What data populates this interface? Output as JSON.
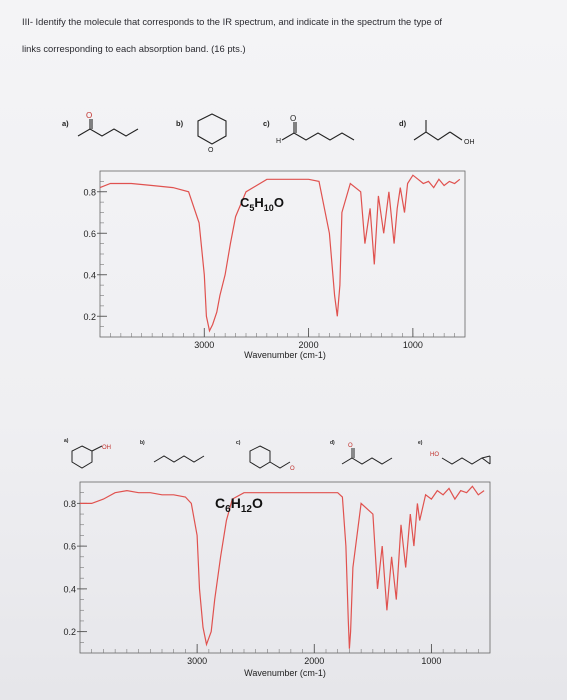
{
  "header": {
    "line1": "III- Identify the molecule that corresponds to the IR spectrum, and indicate in the spectrum the type of",
    "line2": "links corresponding to each absorption band. (16 pts.)"
  },
  "problem1": {
    "options": [
      {
        "label": "a)",
        "atom": "O"
      },
      {
        "label": "b)",
        "atom": "O"
      },
      {
        "label": "c)",
        "atom": "O",
        "atom2": "H"
      },
      {
        "label": "d)",
        "atom": "OH"
      }
    ],
    "formula": {
      "main1": "C",
      "sub1": "5",
      "main2": "H",
      "sub2": "10",
      "main3": "O"
    },
    "y_ticks": [
      "0.8",
      "0.6",
      "0.4",
      "0.2"
    ],
    "x_ticks": [
      "3000",
      "2000",
      "1000"
    ],
    "xlabel": "Wavenumber (cm-1)"
  },
  "problem2": {
    "options": [
      {
        "label": "a)",
        "atom": "OH"
      },
      {
        "label": "b)",
        "atom": ""
      },
      {
        "label": "c)",
        "atom": "O"
      },
      {
        "label": "d)",
        "atom": "O"
      },
      {
        "label": "e)",
        "atom": "HO"
      }
    ],
    "formula": {
      "main1": "C",
      "sub1": "6",
      "main2": "H",
      "sub2": "12",
      "main3": "O"
    },
    "y_ticks": [
      "0.8",
      "0.6",
      "0.4",
      "0.2"
    ],
    "x_ticks": [
      "3000",
      "2000",
      "1000"
    ],
    "xlabel": "Wavenumber (cm-1)"
  },
  "colors": {
    "spectrum": "#e0524f",
    "axis": "#555555",
    "text": "#222222"
  },
  "chart_data": [
    {
      "type": "line",
      "title": "C5H10O",
      "xlabel": "Wavenumber (cm-1)",
      "ylabel": "",
      "x_reversed": true,
      "xlim": [
        4000,
        500
      ],
      "ylim": [
        0.1,
        0.9
      ],
      "x_ticks": [
        3000,
        2000,
        1000
      ],
      "y_ticks": [
        0.8,
        0.6,
        0.4,
        0.2
      ],
      "series": [
        {
          "x": [
            4000,
            3900,
            3700,
            3500,
            3300,
            3150,
            3050,
            3000,
            2980,
            2950,
            2920,
            2880,
            2850,
            2800,
            2750,
            2700,
            2600,
            2400,
            2200,
            2000,
            1900,
            1800,
            1750,
            1725,
            1700,
            1680,
            1600,
            1500,
            1460,
            1410,
            1370,
            1330,
            1280,
            1230,
            1180,
            1150,
            1120,
            1080,
            1050,
            1000,
            950,
            900,
            850,
            800,
            750,
            700,
            650,
            600,
            550
          ],
          "y": [
            0.82,
            0.84,
            0.84,
            0.83,
            0.82,
            0.8,
            0.65,
            0.4,
            0.2,
            0.13,
            0.16,
            0.22,
            0.3,
            0.4,
            0.55,
            0.68,
            0.8,
            0.86,
            0.86,
            0.86,
            0.85,
            0.6,
            0.3,
            0.2,
            0.35,
            0.7,
            0.84,
            0.8,
            0.55,
            0.72,
            0.45,
            0.78,
            0.6,
            0.8,
            0.55,
            0.72,
            0.82,
            0.7,
            0.84,
            0.88,
            0.86,
            0.84,
            0.85,
            0.82,
            0.86,
            0.83,
            0.85,
            0.84,
            0.86
          ]
        }
      ]
    },
    {
      "type": "line",
      "title": "C6H12O",
      "xlabel": "Wavenumber (cm-1)",
      "ylabel": "",
      "x_reversed": true,
      "xlim": [
        4000,
        500
      ],
      "ylim": [
        0.1,
        0.9
      ],
      "x_ticks": [
        3000,
        2000,
        1000
      ],
      "y_ticks": [
        0.8,
        0.6,
        0.4,
        0.2
      ],
      "series": [
        {
          "x": [
            4000,
            3900,
            3800,
            3700,
            3600,
            3500,
            3400,
            3300,
            3200,
            3100,
            3050,
            3000,
            2980,
            2950,
            2920,
            2880,
            2850,
            2800,
            2750,
            2700,
            2600,
            2400,
            2200,
            2000,
            1900,
            1800,
            1760,
            1730,
            1710,
            1700,
            1690,
            1670,
            1600,
            1500,
            1460,
            1420,
            1380,
            1340,
            1300,
            1260,
            1220,
            1180,
            1150,
            1120,
            1100,
            1050,
            1000,
            950,
            900,
            850,
            800,
            750,
            700,
            650,
            600,
            550
          ],
          "y": [
            0.8,
            0.8,
            0.82,
            0.85,
            0.86,
            0.85,
            0.85,
            0.84,
            0.84,
            0.83,
            0.8,
            0.65,
            0.4,
            0.22,
            0.14,
            0.2,
            0.35,
            0.55,
            0.72,
            0.82,
            0.85,
            0.85,
            0.85,
            0.85,
            0.85,
            0.85,
            0.83,
            0.6,
            0.25,
            0.12,
            0.2,
            0.5,
            0.8,
            0.75,
            0.4,
            0.6,
            0.3,
            0.55,
            0.35,
            0.7,
            0.5,
            0.75,
            0.6,
            0.8,
            0.72,
            0.84,
            0.82,
            0.86,
            0.84,
            0.87,
            0.82,
            0.86,
            0.85,
            0.88,
            0.84,
            0.86
          ]
        }
      ]
    }
  ]
}
